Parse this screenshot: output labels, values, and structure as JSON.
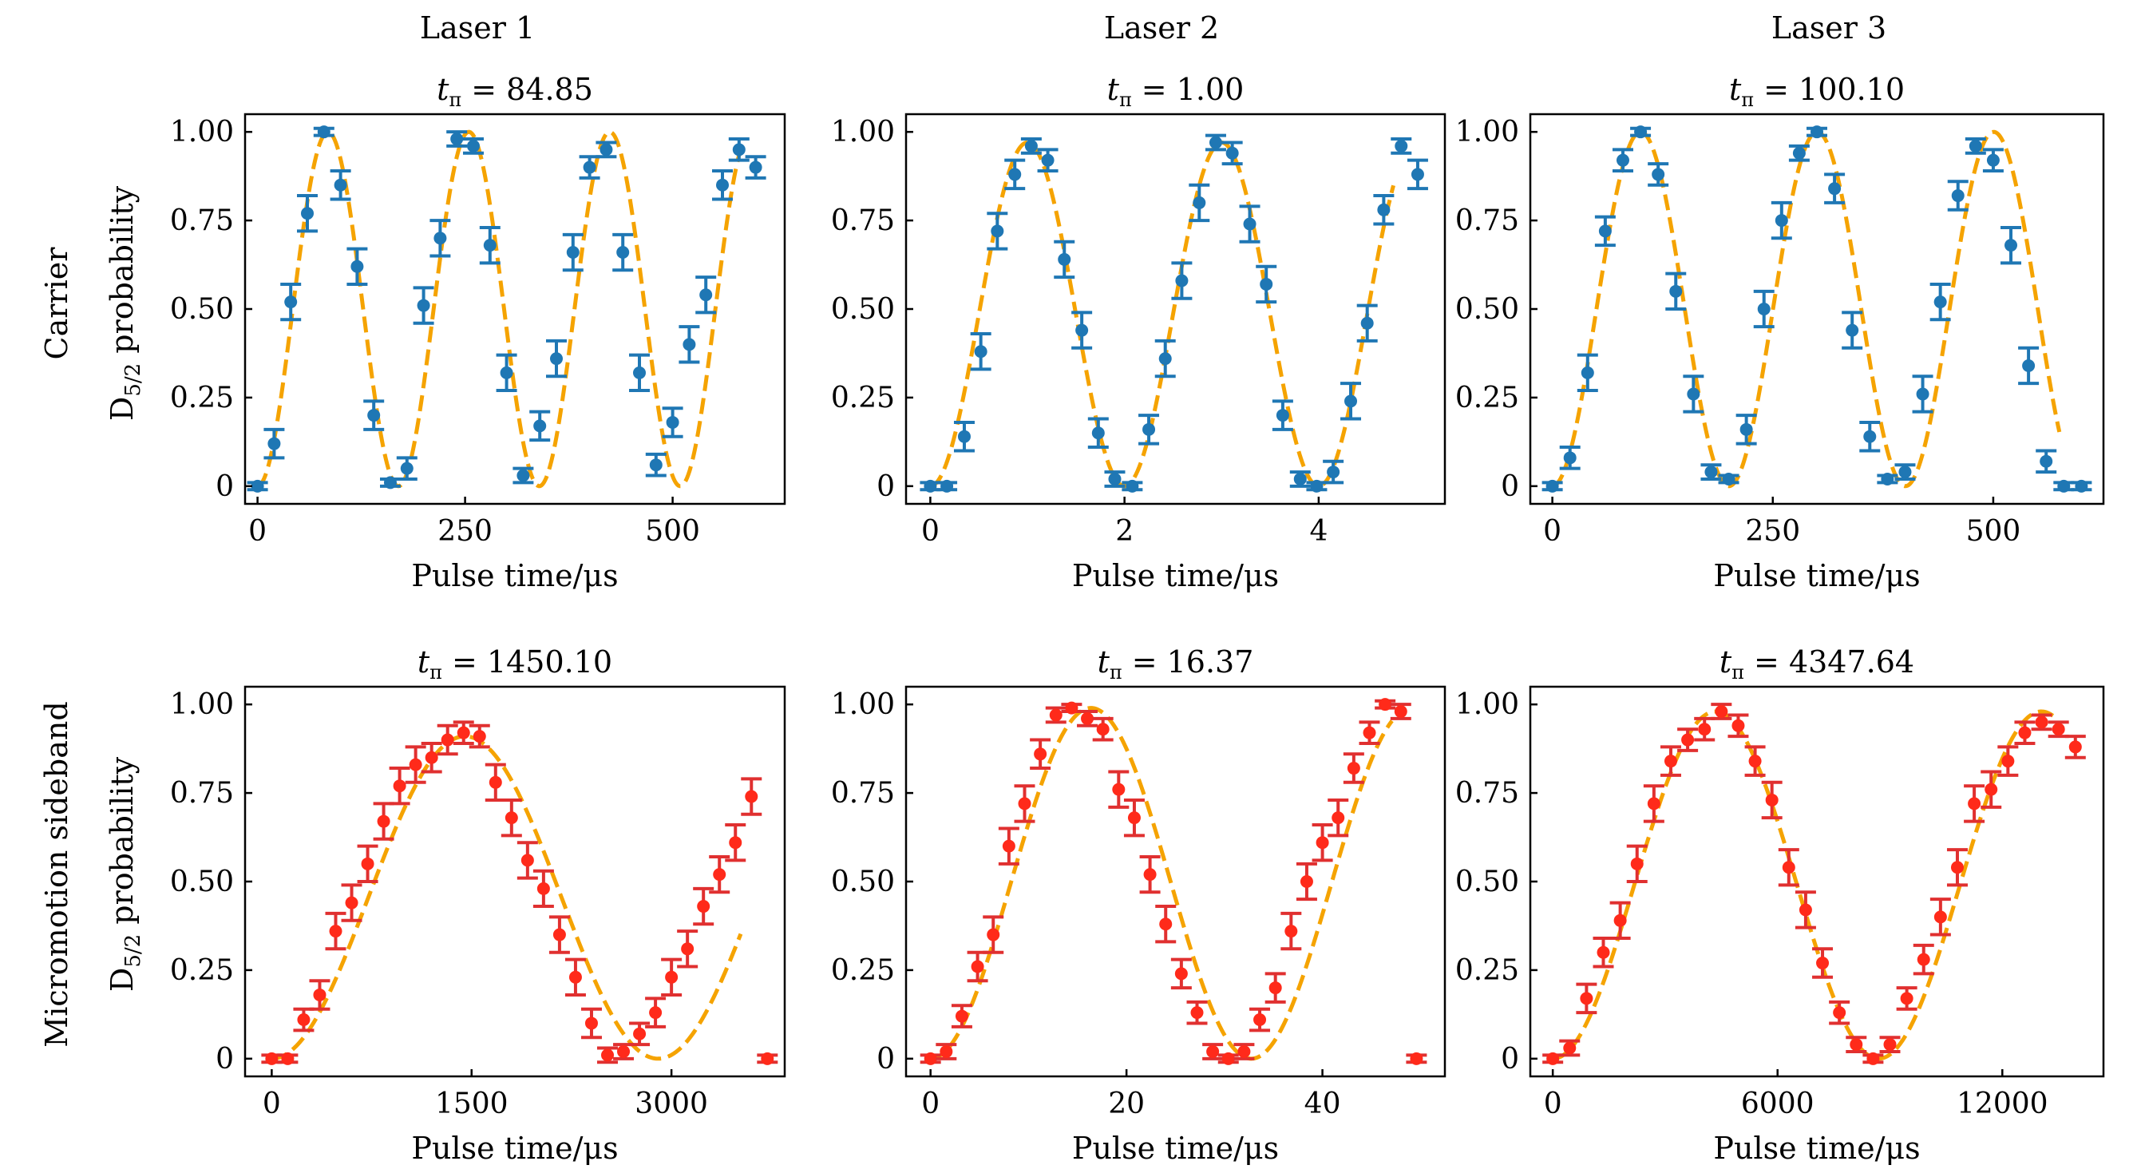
{
  "figure": {
    "columns": [
      "Laser 1",
      "Laser 2",
      "Laser 3"
    ],
    "rows": [
      "Carrier",
      "Micromotion sideband"
    ],
    "ylabel": "D5/2 probability",
    "xlabel": "Pulse time/μs"
  },
  "colors": {
    "carrier_points": "#1f77b4",
    "sideband_points": "#ff2a1a",
    "sideband_errorbars": "#e03030",
    "fit_line": "#f5a300",
    "axes": "#000000"
  },
  "chart_data": [
    {
      "type": "scatter",
      "title": "t_π = 84.85",
      "xlabel": "Pulse time/μs",
      "ylabel": "D5/2 probability",
      "row": "Carrier",
      "column": "Laser 1",
      "xlim": [
        -15,
        635
      ],
      "ylim": [
        -0.05,
        1.05
      ],
      "xticks": [
        0,
        250,
        500
      ],
      "xticklabels": [
        "0",
        "250",
        "500"
      ],
      "yticks": [
        0,
        0.25,
        0.5,
        0.75,
        1.0
      ],
      "yticklabels": [
        "0",
        "0.25",
        "0.50",
        "0.75",
        "1.00"
      ],
      "fit": {
        "t_pi": 84.85,
        "amplitude": 1.0
      },
      "series": [
        {
          "kind": "points_with_errorbars",
          "x": [
            0,
            20,
            40,
            60,
            80,
            100,
            120,
            140,
            160,
            180,
            200,
            220,
            240,
            260,
            280,
            300,
            320,
            340,
            360,
            380,
            400,
            420,
            440,
            460,
            480,
            500,
            520,
            540,
            560,
            580,
            600
          ],
          "y": [
            0.0,
            0.12,
            0.52,
            0.77,
            1.0,
            0.85,
            0.62,
            0.2,
            0.01,
            0.05,
            0.51,
            0.7,
            0.98,
            0.96,
            0.68,
            0.32,
            0.03,
            0.17,
            0.36,
            0.66,
            0.9,
            0.95,
            0.66,
            0.32,
            0.06,
            0.18,
            0.4,
            0.54,
            0.85,
            0.95,
            0.9
          ],
          "yerr": [
            0.01,
            0.04,
            0.05,
            0.05,
            0.01,
            0.04,
            0.05,
            0.04,
            0.01,
            0.03,
            0.05,
            0.05,
            0.02,
            0.02,
            0.05,
            0.05,
            0.02,
            0.04,
            0.05,
            0.05,
            0.03,
            0.02,
            0.05,
            0.05,
            0.03,
            0.04,
            0.05,
            0.05,
            0.04,
            0.03,
            0.03
          ]
        },
        {
          "kind": "fit",
          "style": "dashed"
        }
      ]
    },
    {
      "type": "scatter",
      "title": "t_π = 1.00",
      "xlabel": "Pulse time/μs",
      "ylabel": "",
      "row": "Carrier",
      "column": "Laser 2",
      "xlim": [
        -0.25,
        5.3
      ],
      "ylim": [
        -0.05,
        1.05
      ],
      "xticks": [
        0,
        2,
        4
      ],
      "xticklabels": [
        "0",
        "2",
        "4"
      ],
      "yticks": [
        0,
        0.25,
        0.5,
        0.75,
        1.0
      ],
      "yticklabels": [
        "0",
        "0.25",
        "0.50",
        "0.75",
        "1.00"
      ],
      "fit": {
        "t_pi": 1.0,
        "amplitude": 0.97
      },
      "series": [
        {
          "kind": "points_with_errorbars",
          "x": [
            0.0,
            0.17,
            0.35,
            0.52,
            0.69,
            0.87,
            1.04,
            1.21,
            1.38,
            1.56,
            1.73,
            1.9,
            2.08,
            2.25,
            2.42,
            2.59,
            2.77,
            2.94,
            3.11,
            3.29,
            3.46,
            3.63,
            3.81,
            3.98,
            4.15,
            4.33,
            4.5,
            4.67,
            4.85,
            5.02
          ],
          "y": [
            0.0,
            0.0,
            0.14,
            0.38,
            0.72,
            0.88,
            0.96,
            0.92,
            0.64,
            0.44,
            0.15,
            0.02,
            0.0,
            0.16,
            0.36,
            0.58,
            0.8,
            0.97,
            0.94,
            0.74,
            0.57,
            0.2,
            0.02,
            0.0,
            0.04,
            0.24,
            0.46,
            0.78,
            0.96,
            0.88
          ],
          "yerr": [
            0.01,
            0.01,
            0.04,
            0.05,
            0.05,
            0.04,
            0.02,
            0.03,
            0.05,
            0.05,
            0.04,
            0.02,
            0.01,
            0.04,
            0.05,
            0.05,
            0.05,
            0.02,
            0.03,
            0.05,
            0.05,
            0.04,
            0.02,
            0.01,
            0.03,
            0.05,
            0.05,
            0.04,
            0.02,
            0.04
          ]
        },
        {
          "kind": "fit",
          "style": "dashed"
        }
      ]
    },
    {
      "type": "scatter",
      "title": "t_π = 100.10",
      "xlabel": "Pulse time/μs",
      "ylabel": "",
      "row": "Carrier",
      "column": "Laser 3",
      "xlim": [
        -25,
        625
      ],
      "ylim": [
        -0.05,
        1.05
      ],
      "xticks": [
        0,
        250,
        500
      ],
      "xticklabels": [
        "0",
        "250",
        "500"
      ],
      "yticks": [
        0,
        0.25,
        0.5,
        0.75,
        1.0
      ],
      "yticklabels": [
        "0",
        "0.25",
        "0.50",
        "0.75",
        "1.00"
      ],
      "fit": {
        "t_pi": 100.1,
        "amplitude": 1.0
      },
      "series": [
        {
          "kind": "points_with_errorbars",
          "x": [
            0,
            20,
            40,
            60,
            80,
            100,
            120,
            140,
            160,
            180,
            200,
            220,
            240,
            260,
            280,
            300,
            320,
            340,
            360,
            380,
            400,
            420,
            440,
            460,
            480,
            500,
            520,
            540,
            560,
            580,
            600
          ],
          "y": [
            0.0,
            0.08,
            0.32,
            0.72,
            0.92,
            1.0,
            0.88,
            0.55,
            0.26,
            0.04,
            0.02,
            0.16,
            0.5,
            0.75,
            0.94,
            1.0,
            0.84,
            0.44,
            0.14,
            0.02,
            0.04,
            0.26,
            0.52,
            0.82,
            0.96,
            0.92,
            0.68,
            0.34,
            0.07,
            0.0,
            0.0
          ],
          "yerr": [
            0.01,
            0.03,
            0.05,
            0.04,
            0.03,
            0.01,
            0.03,
            0.05,
            0.05,
            0.02,
            0.01,
            0.04,
            0.05,
            0.05,
            0.02,
            0.01,
            0.04,
            0.05,
            0.04,
            0.01,
            0.02,
            0.05,
            0.05,
            0.04,
            0.02,
            0.03,
            0.05,
            0.05,
            0.03,
            0.01,
            0.01
          ]
        },
        {
          "kind": "fit",
          "style": "dashed"
        }
      ]
    },
    {
      "type": "scatter",
      "title": "t_π = 1450.10",
      "xlabel": "Pulse time/μs",
      "ylabel": "D5/2 probability",
      "row": "Micromotion sideband",
      "column": "Laser 1",
      "xlim": [
        -200,
        3850
      ],
      "ylim": [
        -0.05,
        1.05
      ],
      "xticks": [
        0,
        1500,
        3000
      ],
      "xticklabels": [
        "0",
        "1500",
        "3000"
      ],
      "yticks": [
        0,
        0.25,
        0.5,
        0.75,
        1.0
      ],
      "yticklabels": [
        "0",
        "0.25",
        "0.50",
        "0.75",
        "1.00"
      ],
      "fit": {
        "t_pi": 1450.1,
        "amplitude": 0.91
      },
      "series": [
        {
          "kind": "points_with_errorbars",
          "x": [
            0,
            120,
            240,
            360,
            480,
            600,
            720,
            840,
            960,
            1080,
            1200,
            1320,
            1440,
            1560,
            1680,
            1800,
            1920,
            2040,
            2160,
            2280,
            2400,
            2520,
            2640,
            2760,
            2880,
            3000,
            3120,
            3240,
            3360,
            3480,
            3600,
            3720
          ],
          "y": [
            0.0,
            0.0,
            0.11,
            0.18,
            0.36,
            0.44,
            0.55,
            0.67,
            0.77,
            0.83,
            0.85,
            0.9,
            0.92,
            0.91,
            0.78,
            0.68,
            0.56,
            0.48,
            0.35,
            0.23,
            0.1,
            0.01,
            0.02,
            0.07,
            0.13,
            0.23,
            0.31,
            0.43,
            0.52,
            0.61,
            0.74,
            0.0
          ],
          "yerr": [
            0.01,
            0.01,
            0.03,
            0.04,
            0.05,
            0.05,
            0.05,
            0.05,
            0.05,
            0.05,
            0.04,
            0.04,
            0.03,
            0.03,
            0.05,
            0.05,
            0.05,
            0.05,
            0.05,
            0.05,
            0.04,
            0.02,
            0.02,
            0.03,
            0.04,
            0.05,
            0.05,
            0.05,
            0.05,
            0.05,
            0.05,
            0.01
          ]
        },
        {
          "kind": "fit",
          "style": "dashed"
        }
      ]
    },
    {
      "type": "scatter",
      "title": "t_π = 16.37",
      "xlabel": "Pulse time/μs",
      "ylabel": "",
      "row": "Micromotion sideband",
      "column": "Laser 2",
      "xlim": [
        -2.5,
        52.5
      ],
      "ylim": [
        -0.05,
        1.05
      ],
      "xticks": [
        0,
        20,
        40
      ],
      "xticklabels": [
        "0",
        "20",
        "40"
      ],
      "yticks": [
        0,
        0.25,
        0.5,
        0.75,
        1.0
      ],
      "yticklabels": [
        "0",
        "0.25",
        "0.50",
        "0.75",
        "1.00"
      ],
      "fit": {
        "t_pi": 16.37,
        "amplitude": 0.99
      },
      "series": [
        {
          "kind": "points_with_errorbars",
          "x": [
            0.0,
            1.6,
            3.2,
            4.8,
            6.4,
            8.0,
            9.6,
            11.2,
            12.8,
            14.4,
            16.0,
            17.6,
            19.2,
            20.8,
            22.4,
            24.0,
            25.6,
            27.2,
            28.8,
            30.4,
            32.0,
            33.6,
            35.2,
            36.8,
            38.4,
            40.0,
            41.6,
            43.2,
            44.8,
            46.4,
            48.0,
            49.6
          ],
          "y": [
            0.0,
            0.02,
            0.12,
            0.26,
            0.35,
            0.6,
            0.72,
            0.86,
            0.97,
            0.99,
            0.96,
            0.93,
            0.76,
            0.68,
            0.52,
            0.38,
            0.24,
            0.13,
            0.02,
            0.0,
            0.02,
            0.11,
            0.2,
            0.36,
            0.5,
            0.61,
            0.68,
            0.82,
            0.92,
            1.0,
            0.98,
            0.0
          ],
          "yerr": [
            0.01,
            0.02,
            0.03,
            0.04,
            0.05,
            0.05,
            0.05,
            0.04,
            0.02,
            0.01,
            0.02,
            0.03,
            0.05,
            0.05,
            0.05,
            0.05,
            0.04,
            0.03,
            0.02,
            0.01,
            0.02,
            0.03,
            0.04,
            0.05,
            0.05,
            0.05,
            0.05,
            0.04,
            0.03,
            0.01,
            0.02,
            0.01
          ]
        },
        {
          "kind": "fit",
          "style": "dashed"
        }
      ]
    },
    {
      "type": "scatter",
      "title": "t_π = 4347.64",
      "xlabel": "Pulse time/μs",
      "ylabel": "",
      "row": "Micromotion sideband",
      "column": "Laser 3",
      "xlim": [
        -600,
        14700
      ],
      "ylim": [
        -0.05,
        1.05
      ],
      "xticks": [
        0,
        6000,
        12000
      ],
      "xticklabels": [
        "0",
        "6000",
        "12000"
      ],
      "yticks": [
        0,
        0.25,
        0.5,
        0.75,
        1.0
      ],
      "yticklabels": [
        "0",
        "0.25",
        "0.50",
        "0.75",
        "1.00"
      ],
      "fit": {
        "t_pi": 4347.64,
        "amplitude": 0.98
      },
      "series": [
        {
          "kind": "points_with_errorbars",
          "x": [
            0,
            450,
            900,
            1350,
            1800,
            2250,
            2700,
            3150,
            3600,
            4050,
            4500,
            4950,
            5400,
            5850,
            6300,
            6750,
            7200,
            7650,
            8100,
            8550,
            9000,
            9450,
            9900,
            10350,
            10800,
            11250,
            11700,
            12150,
            12600,
            13050,
            13500,
            13950
          ],
          "y": [
            0.0,
            0.03,
            0.17,
            0.3,
            0.39,
            0.55,
            0.72,
            0.84,
            0.9,
            0.93,
            0.98,
            0.94,
            0.84,
            0.73,
            0.54,
            0.42,
            0.27,
            0.13,
            0.04,
            0.0,
            0.04,
            0.17,
            0.28,
            0.4,
            0.54,
            0.72,
            0.76,
            0.84,
            0.92,
            0.95,
            0.93,
            0.88
          ],
          "yerr": [
            0.01,
            0.02,
            0.04,
            0.04,
            0.05,
            0.05,
            0.05,
            0.04,
            0.03,
            0.03,
            0.02,
            0.03,
            0.04,
            0.05,
            0.05,
            0.05,
            0.04,
            0.03,
            0.02,
            0.01,
            0.02,
            0.03,
            0.04,
            0.05,
            0.05,
            0.05,
            0.05,
            0.04,
            0.03,
            0.02,
            0.02,
            0.03
          ]
        },
        {
          "kind": "fit",
          "style": "dashed"
        }
      ]
    }
  ]
}
